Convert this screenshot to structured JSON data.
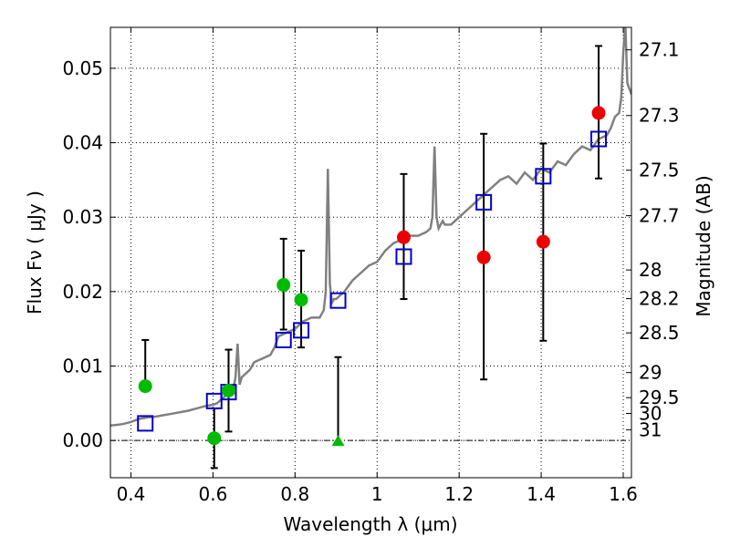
{
  "chart_data": {
    "type": "scatter",
    "xlabel": "Wavelength  λ (μm)",
    "ylabel": "Flux  Fν  ( μJy )",
    "y2label": "Magnitude (AB)",
    "xlim": [
      0.35,
      1.62
    ],
    "ylim": [
      -0.005,
      0.0555
    ],
    "x_ticks": [
      0.4,
      0.6,
      0.8,
      1.0,
      1.2,
      1.4,
      1.6
    ],
    "x_tick_labels": [
      "0.4",
      "0.6",
      "0.8",
      "1",
      "1.2",
      "1.4",
      "1.6"
    ],
    "y_ticks": [
      0.0,
      0.01,
      0.02,
      0.03,
      0.04,
      0.05
    ],
    "y_tick_labels": [
      "0.00",
      "0.01",
      "0.02",
      "0.03",
      "0.04",
      "0.05"
    ],
    "mag_ticks": [
      "27.1",
      "27.3",
      "27.5",
      "27.7",
      "28",
      "28.2",
      "28.5",
      "29",
      "29.5",
      "30",
      "31"
    ],
    "grid": true,
    "series": [
      {
        "kind": "spectrum",
        "color": "#808080",
        "x": [
          0.35,
          0.38,
          0.4,
          0.42,
          0.44,
          0.46,
          0.48,
          0.5,
          0.52,
          0.54,
          0.56,
          0.58,
          0.6,
          0.61,
          0.62,
          0.63,
          0.64,
          0.65,
          0.655,
          0.66,
          0.665,
          0.67,
          0.69,
          0.7,
          0.72,
          0.74,
          0.75,
          0.76,
          0.78,
          0.8,
          0.82,
          0.84,
          0.86,
          0.87,
          0.875,
          0.88,
          0.885,
          0.89,
          0.895,
          0.9,
          0.92,
          0.94,
          0.96,
          0.98,
          1.0,
          1.02,
          1.04,
          1.06,
          1.07,
          1.08,
          1.1,
          1.12,
          1.13,
          1.135,
          1.14,
          1.145,
          1.15,
          1.155,
          1.16,
          1.165,
          1.17,
          1.18,
          1.19,
          1.2,
          1.22,
          1.24,
          1.26,
          1.28,
          1.3,
          1.32,
          1.34,
          1.36,
          1.38,
          1.4,
          1.42,
          1.44,
          1.46,
          1.48,
          1.5,
          1.52,
          1.54,
          1.56,
          1.57,
          1.58,
          1.59,
          1.595,
          1.6,
          1.605,
          1.61,
          1.62
        ],
        "y": [
          0.002,
          0.0022,
          0.0025,
          0.0029,
          0.0031,
          0.0032,
          0.0034,
          0.0036,
          0.0038,
          0.004,
          0.0043,
          0.0046,
          0.0048,
          0.005,
          0.0055,
          0.006,
          0.0065,
          0.007,
          0.0085,
          0.013,
          0.0075,
          0.0085,
          0.0095,
          0.0105,
          0.011,
          0.0115,
          0.0125,
          0.014,
          0.0145,
          0.015,
          0.016,
          0.0165,
          0.0165,
          0.0175,
          0.02,
          0.0365,
          0.021,
          0.0185,
          0.019,
          0.019,
          0.02,
          0.0215,
          0.0225,
          0.0235,
          0.024,
          0.0255,
          0.0265,
          0.027,
          0.028,
          0.0275,
          0.0275,
          0.028,
          0.0285,
          0.03,
          0.0395,
          0.03,
          0.0285,
          0.029,
          0.0295,
          0.029,
          0.029,
          0.029,
          0.0295,
          0.03,
          0.031,
          0.032,
          0.033,
          0.034,
          0.035,
          0.0355,
          0.0345,
          0.036,
          0.035,
          0.0365,
          0.036,
          0.0375,
          0.037,
          0.0385,
          0.0395,
          0.039,
          0.0405,
          0.041,
          0.042,
          0.0435,
          0.044,
          0.046,
          0.052,
          0.056,
          0.048,
          0.0465
        ]
      },
      {
        "kind": "model_squares",
        "color": "#0000cc",
        "x": [
          0.435,
          0.603,
          0.638,
          0.772,
          0.815,
          0.905,
          1.065,
          1.26,
          1.405,
          1.54
        ],
        "y": [
          0.0023,
          0.0053,
          0.0065,
          0.0135,
          0.0148,
          0.0188,
          0.0247,
          0.032,
          0.0355,
          0.0405
        ]
      },
      {
        "kind": "green_points",
        "color": "#00bb00",
        "x": [
          0.435,
          0.603,
          0.638,
          0.772,
          0.815
        ],
        "y": [
          0.0073,
          0.0003,
          0.0067,
          0.0209,
          0.0189
        ],
        "yerr_low": [
          null,
          0.004,
          0.0055,
          0.006,
          0.0064
        ],
        "yerr_high": [
          0.0062,
          0.004,
          0.0055,
          0.0062,
          0.0066
        ]
      },
      {
        "kind": "green_upper_limit",
        "color": "#00bb00",
        "x": [
          0.905
        ],
        "y": [
          0.0
        ],
        "yerr_high": [
          0.0112
        ]
      },
      {
        "kind": "red_points",
        "color": "#ee0000",
        "x": [
          1.065,
          1.26,
          1.405,
          1.54
        ],
        "y": [
          0.0273,
          0.0246,
          0.0267,
          0.044
        ],
        "yerr_low": [
          0.0083,
          0.0164,
          0.0133,
          0.0088
        ],
        "yerr_high": [
          0.0085,
          0.0166,
          0.0132,
          0.009
        ]
      }
    ]
  }
}
